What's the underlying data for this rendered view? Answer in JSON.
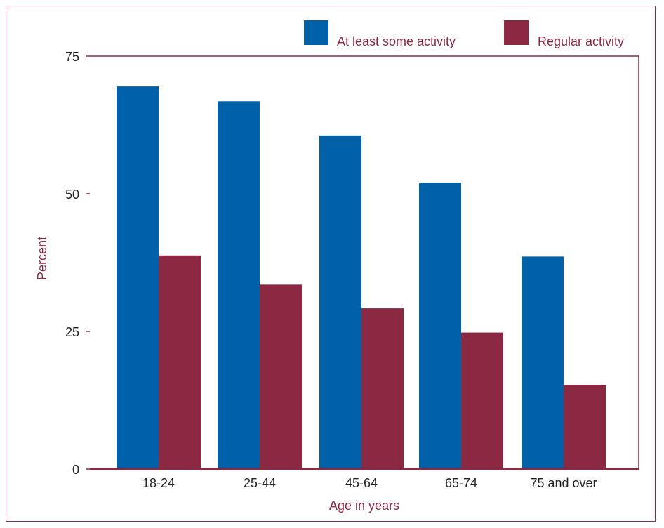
{
  "colors": {
    "series_blue": "#0060a8",
    "series_maroon": "#8b2942",
    "frame": "#8b2942",
    "axis_text": "#222222"
  },
  "chart_data": {
    "type": "bar",
    "title": "",
    "xlabel": "Age in years",
    "ylabel": "Percent",
    "ylim": [
      0,
      75
    ],
    "yticks": [
      "0",
      "25",
      "50",
      "75"
    ],
    "categories": [
      "18-24",
      "25-44",
      "45-64",
      "65-74",
      "75 and over"
    ],
    "series": [
      {
        "name": "At least some activity",
        "values": [
          69.5,
          66.8,
          60.6,
          52.0,
          38.6
        ]
      },
      {
        "name": "Regular activity",
        "values": [
          38.8,
          33.5,
          29.2,
          24.8,
          15.3
        ]
      }
    ],
    "legend": "top-right",
    "grid": false
  }
}
